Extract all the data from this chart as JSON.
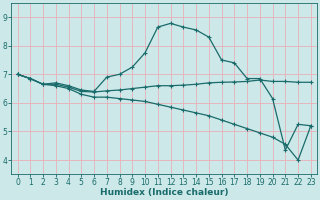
{
  "title": "",
  "xlabel": "Humidex (Indice chaleur)",
  "bg_color": "#cce8e8",
  "grid_color": "#e8b0b8",
  "line_color": "#1a6b6b",
  "marker": "+",
  "xlim": [
    -0.5,
    23.5
  ],
  "ylim": [
    3.5,
    9.5
  ],
  "xticks": [
    0,
    1,
    2,
    3,
    4,
    5,
    6,
    7,
    8,
    9,
    10,
    11,
    12,
    13,
    14,
    15,
    16,
    17,
    18,
    19,
    20,
    21,
    22,
    23
  ],
  "yticks": [
    4,
    5,
    6,
    7,
    8,
    9
  ],
  "line1_x": [
    0,
    1,
    2,
    3,
    4,
    5,
    6,
    7,
    8,
    9,
    10,
    11,
    12,
    13,
    14,
    15,
    16,
    17,
    18,
    19,
    20,
    21,
    22,
    23
  ],
  "line1_y": [
    7.0,
    6.85,
    6.65,
    6.7,
    6.6,
    6.45,
    6.4,
    6.9,
    7.0,
    7.25,
    7.75,
    8.65,
    8.78,
    8.65,
    8.55,
    8.3,
    7.5,
    7.4,
    6.85,
    6.85,
    6.15,
    4.35,
    5.25,
    5.2
  ],
  "line2_x": [
    0,
    1,
    2,
    3,
    4,
    5,
    6,
    7,
    8,
    9,
    10,
    11,
    12,
    13,
    14,
    15,
    16,
    17,
    18,
    19,
    20,
    21,
    22,
    23
  ],
  "line2_y": [
    7.0,
    6.85,
    6.65,
    6.65,
    6.55,
    6.4,
    6.38,
    6.42,
    6.45,
    6.5,
    6.55,
    6.6,
    6.6,
    6.62,
    6.65,
    6.7,
    6.72,
    6.73,
    6.75,
    6.8,
    6.75,
    6.75,
    6.72,
    6.72
  ],
  "line3_x": [
    0,
    1,
    2,
    3,
    4,
    5,
    6,
    7,
    8,
    9,
    10,
    11,
    12,
    13,
    14,
    15,
    16,
    17,
    18,
    19,
    20,
    21,
    22,
    23
  ],
  "line3_y": [
    7.0,
    6.85,
    6.65,
    6.6,
    6.5,
    6.3,
    6.2,
    6.2,
    6.15,
    6.1,
    6.05,
    5.95,
    5.85,
    5.75,
    5.65,
    5.55,
    5.4,
    5.25,
    5.1,
    4.95,
    4.8,
    4.55,
    4.0,
    5.2
  ],
  "axis_color": "#1a6b6b",
  "tick_color": "#1a6b6b",
  "xlabel_fontsize": 6.5,
  "tick_fontsize": 5.5,
  "lw": 0.9,
  "ms": 3.5
}
